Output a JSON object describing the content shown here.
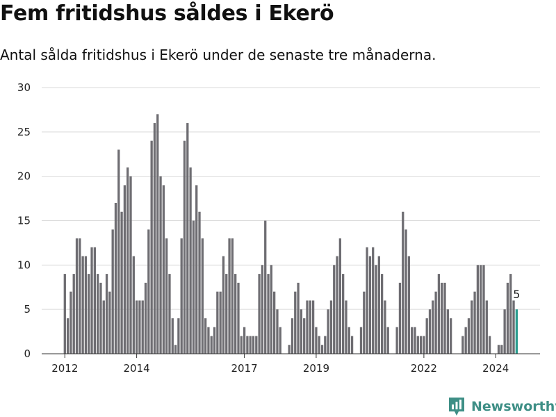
{
  "title": "Fem fritidshus såldes i Ekerö",
  "subtitle": "Antal sålda fritidshus i Ekerö under de senaste tre månaderna.",
  "brand": {
    "name": "Newsworthy",
    "icon": "newsworthy-logo-icon",
    "color": "#3e8f86"
  },
  "colors": {
    "bar": "#6e6d72",
    "highlight": "#2a9d8f",
    "grid": "#d9d9d9",
    "axis": "#333333"
  },
  "chart_data": {
    "type": "bar",
    "xlabel": "",
    "ylabel": "",
    "ylim": [
      0,
      30
    ],
    "yticks": [
      "0",
      "5",
      "10",
      "15",
      "20",
      "25",
      "30"
    ],
    "xticks": [
      {
        "label": "2012",
        "index": 0
      },
      {
        "label": "2014",
        "index": 24
      },
      {
        "label": "2017",
        "index": 60
      },
      {
        "label": "2019",
        "index": 84
      },
      {
        "label": "2022",
        "index": 120
      },
      {
        "label": "2024",
        "index": 144
      }
    ],
    "start": "2012-01",
    "frequency": "monthly",
    "grid": true,
    "highlight_label": "5",
    "values": [
      9,
      4,
      7,
      9,
      13,
      13,
      11,
      11,
      9,
      12,
      12,
      9,
      8,
      6,
      9,
      7,
      14,
      17,
      23,
      16,
      19,
      21,
      20,
      11,
      6,
      6,
      6,
      8,
      14,
      24,
      26,
      27,
      20,
      19,
      13,
      9,
      4,
      1,
      4,
      13,
      24,
      26,
      21,
      15,
      19,
      16,
      13,
      4,
      3,
      2,
      3,
      7,
      7,
      11,
      9,
      13,
      13,
      9,
      8,
      2,
      3,
      2,
      2,
      2,
      2,
      9,
      10,
      15,
      9,
      10,
      7,
      5,
      3,
      0,
      0,
      1,
      4,
      7,
      8,
      5,
      4,
      6,
      6,
      6,
      3,
      2,
      1,
      2,
      5,
      6,
      10,
      11,
      13,
      9,
      6,
      3,
      2,
      0,
      0,
      3,
      7,
      12,
      11,
      12,
      10,
      11,
      9,
      6,
      3,
      0,
      0,
      3,
      8,
      16,
      14,
      11,
      3,
      3,
      2,
      2,
      2,
      4,
      5,
      6,
      7,
      9,
      8,
      8,
      5,
      4,
      0,
      0,
      0,
      2,
      3,
      4,
      6,
      7,
      10,
      10,
      10,
      6,
      2,
      0,
      0,
      1,
      1,
      5,
      8,
      9,
      6,
      5
    ]
  }
}
